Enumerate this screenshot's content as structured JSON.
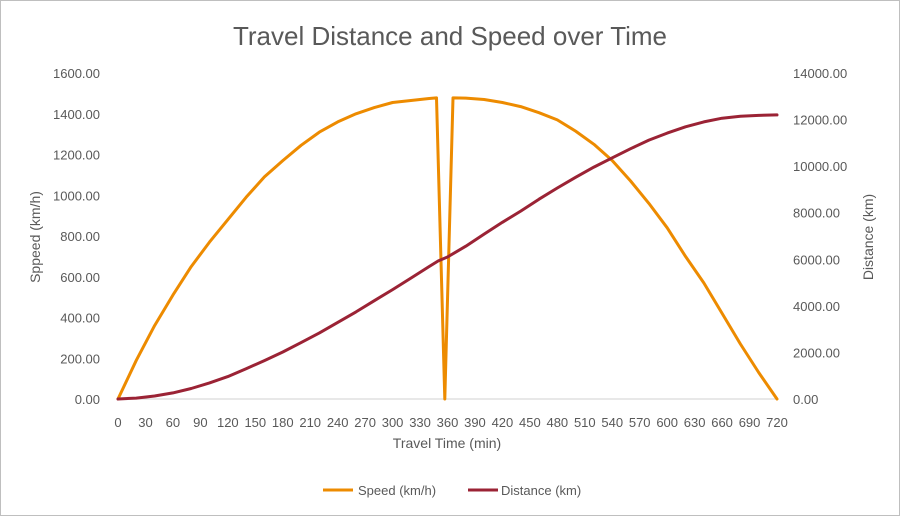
{
  "chart_data": {
    "type": "line",
    "title": "Travel Distance and Speed over Time",
    "xlabel": "Travel Time (min)",
    "ylabel_left": "Sppeed (km/h)",
    "ylabel_right": "Distance (km)",
    "xlim": [
      0,
      720
    ],
    "ylim_left": [
      0,
      1600
    ],
    "ylim_right": [
      0,
      14000
    ],
    "x_ticks": [
      0,
      30,
      60,
      90,
      120,
      150,
      180,
      210,
      240,
      270,
      300,
      330,
      360,
      390,
      420,
      450,
      480,
      510,
      540,
      570,
      600,
      630,
      660,
      690,
      720
    ],
    "x_tick_labels": [
      "0",
      "30",
      "60",
      "90",
      "120",
      "150",
      "180",
      "210",
      "240",
      "270",
      "300",
      "330",
      "360",
      "390",
      "420",
      "450",
      "480",
      "510",
      "540",
      "570",
      "600",
      "630",
      "660",
      "690",
      "720"
    ],
    "y_left_ticks": [
      0,
      200,
      400,
      600,
      800,
      1000,
      1200,
      1400,
      1600
    ],
    "y_left_tick_labels": [
      "0.00",
      "200.00",
      "400.00",
      "600.00",
      "800.00",
      "1000.00",
      "1200.00",
      "1400.00",
      "1600.00"
    ],
    "y_right_ticks": [
      0,
      2000,
      4000,
      6000,
      8000,
      10000,
      12000,
      14000
    ],
    "y_right_tick_labels": [
      "0.00",
      "2000.00",
      "4000.00",
      "6000.00",
      "8000.00",
      "10000.00",
      "12000.00",
      "14000.00"
    ],
    "grid": false,
    "legend_position": "bottom",
    "series": [
      {
        "name": "Speed (km/h)",
        "axis": "left",
        "color": "#ed8b00",
        "x": [
          0,
          20,
          40,
          60,
          80,
          100,
          120,
          140,
          160,
          180,
          200,
          220,
          240,
          260,
          280,
          300,
          320,
          340,
          348,
          357,
          366,
          380,
          400,
          420,
          440,
          460,
          480,
          500,
          520,
          540,
          560,
          580,
          600,
          620,
          640,
          660,
          680,
          700,
          720
        ],
        "y": [
          0,
          190,
          360,
          510,
          650,
          770,
          880,
          990,
          1090,
          1170,
          1245,
          1310,
          1360,
          1400,
          1430,
          1455,
          1465,
          1475,
          1478,
          0,
          1478,
          1477,
          1470,
          1455,
          1435,
          1405,
          1370,
          1315,
          1250,
          1170,
          1070,
          960,
          840,
          700,
          570,
          420,
          270,
          130,
          0
        ]
      },
      {
        "name": "Distance (km)",
        "axis": "right",
        "color": "#9b2335",
        "x": [
          0,
          20,
          40,
          60,
          80,
          100,
          120,
          140,
          160,
          180,
          200,
          220,
          240,
          260,
          280,
          300,
          320,
          340,
          350,
          360,
          380,
          400,
          420,
          440,
          460,
          480,
          500,
          520,
          540,
          560,
          580,
          600,
          620,
          640,
          660,
          680,
          700,
          720
        ],
        "y": [
          0,
          40,
          130,
          260,
          450,
          690,
          960,
          1300,
          1650,
          2020,
          2420,
          2840,
          3290,
          3740,
          4220,
          4700,
          5190,
          5690,
          5930,
          6100,
          6560,
          7080,
          7590,
          8070,
          8580,
          9060,
          9520,
          9960,
          10360,
          10750,
          11120,
          11420,
          11690,
          11900,
          12060,
          12140,
          12180,
          12200
        ]
      }
    ]
  }
}
